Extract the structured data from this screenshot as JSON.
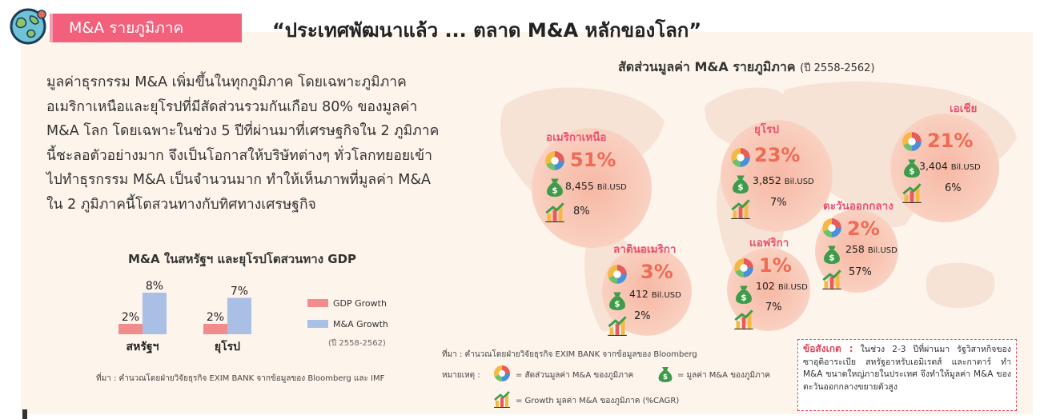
{
  "header": {
    "tag_label": "M&A รายภูมิภาค",
    "headline": "“ประเทศพัฒนาแล้ว ... ตลาด M&A หลักของโลก”"
  },
  "description": [
    "มูลค่าธุรกรรม M&A    เพิ่มขึ้นในทุกภูมิภาค โดยเฉพาะภูมิภาค",
    "อเมริกาเหนือและยุโรปที่มีสัดส่วนรวมกันเกือบ 80%  ของมูลค่า",
    "M&A โลก โดยเฉพาะในช่วง 5 ปีที่ผ่านมาที่เศรษฐกิจใน 2 ภูมิภาค",
    "นี้ชะลอตัวอย่างมาก จึงเป็นโอกาสให้บริษัทต่างๆ ทั่วโลกทยอยเข้า",
    "ไปทำธุรกรรม M&A เป็นจำนวนมาก ทำให้เห็นภาพที่มูลค่า M&A",
    "ใน 2 ภูมิภาคนี้โตสวนทางกับทิศทางเศรษฐกิจ"
  ],
  "colors": {
    "gdp": "#f28b8b",
    "ma": "#a9bfe6",
    "accent": "#f2607b",
    "pct": "#ef6b55"
  },
  "chart_data": [
    {
      "type": "bar",
      "title": "M&A ในสหรัฐฯ และยุโรปโตสวนทาง GDP",
      "categories": [
        "สหรัฐฯ",
        "ยุโรป"
      ],
      "series": [
        {
          "name": "GDP Growth",
          "values": [
            2,
            2
          ],
          "labels": [
            "2%",
            "2%"
          ]
        },
        {
          "name": "M&A Growth",
          "values": [
            8,
            7
          ],
          "labels": [
            "8%",
            "7%"
          ]
        }
      ],
      "period": "(ปี 2558-2562)",
      "unit": "%"
    },
    {
      "type": "table",
      "title": "สัดส่วนมูลค่า M&A รายภูมิภาค",
      "period": "(ปี 2558-2562)",
      "regions": [
        {
          "name": "อเมริกาเหนือ",
          "share": "51%",
          "value": "8,455",
          "unit": "Bil.USD",
          "growth": "8%"
        },
        {
          "name": "ยุโรป",
          "share": "23%",
          "value": "3,852",
          "unit": "Bil.USD",
          "growth": "7%"
        },
        {
          "name": "เอเชีย",
          "share": "21%",
          "value": "3,404",
          "unit": "Bil.USD",
          "growth": "6%"
        },
        {
          "name": "ตะวันออกกลาง",
          "share": "2%",
          "value": "258",
          "unit": "Bil.USD",
          "growth": "57%"
        },
        {
          "name": "ลาตินอเมริกา",
          "share": "3%",
          "value": "412",
          "unit": "Bil.USD",
          "growth": "2%"
        },
        {
          "name": "แอฟริกา",
          "share": "1%",
          "value": "102",
          "unit": "Bil.USD",
          "growth": "7%"
        }
      ]
    }
  ],
  "source_left": "ที่มา : คำนวณโดยฝ่ายวิจัยธุรกิจ EXIM BANK จากข้อมูลของ Bloomberg และ IMF",
  "source_right": "ที่มา : คำนวณโดยฝ่ายวิจัยธุรกิจ EXIM BANK จากข้อมูลของ Bloomberg",
  "notes": {
    "label": "หมายเหตุ :",
    "share": "= สัดส่วนมูลค่า M&A ของภูมิภาค",
    "value": "= มูลค่า M&A ของภูมิภาค",
    "growth": "= Growth มูลค่า M&A ของภูมิภาค (%CAGR)"
  },
  "observation": {
    "label": "ข้อสังเกต :",
    "text": "ในช่วง 2-3 ปีที่ผ่านมา รัฐวิสาหกิจของซาอุดิอาระเบีย สหรัฐอาหรับเอมิเรตส์ และกาตาร์ ทำ M&A ขนาดใหญ่ภายในประเทศ จึงทำให้มูลค่า M&A ของตะวันออกกลางขยายตัวสูง"
  },
  "icons": [
    "globe-icon",
    "pie-icon",
    "money-bag-icon",
    "growth-chart-icon"
  ]
}
